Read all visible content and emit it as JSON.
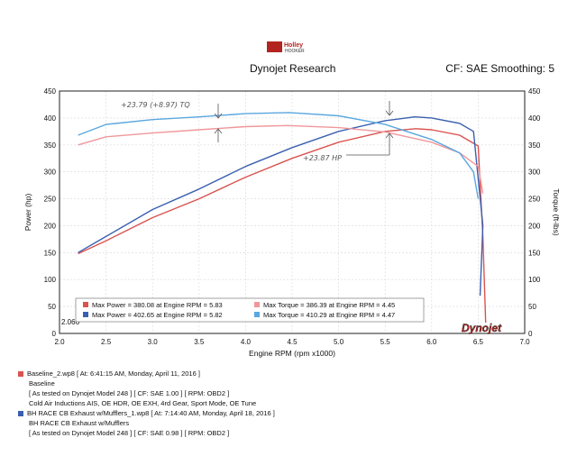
{
  "header": {
    "logo_text": "Holley",
    "logo_sub": "HOOKER",
    "title": "Dynojet Research",
    "cf_smoothing": "CF: SAE Smoothing: 5"
  },
  "chart_data": {
    "type": "line",
    "xlabel": "Engine RPM (rpm x1000)",
    "ylabel_left": "Power (hp)",
    "ylabel_right": "Torque (ft-lbs)",
    "xlim": [
      2.0,
      7.0
    ],
    "ylim": [
      0,
      450
    ],
    "x_ticks": [
      "2.0",
      "2.5",
      "3.0",
      "3.5",
      "4.0",
      "4.5",
      "5.0",
      "5.5",
      "6.0",
      "6.5",
      "7.0"
    ],
    "y_ticks": [
      "0",
      "50",
      "100",
      "150",
      "200",
      "250",
      "300",
      "350",
      "400",
      "450"
    ],
    "min_x_label": "2.066",
    "grid": true,
    "series": [
      {
        "name": "Baseline_2.wp8 Power",
        "color": "#d9534f",
        "x": [
          2.2,
          2.5,
          3.0,
          3.5,
          4.0,
          4.5,
          5.0,
          5.5,
          5.83,
          6.0,
          6.3,
          6.5,
          6.55,
          6.58
        ],
        "y": [
          148,
          172,
          215,
          250,
          290,
          325,
          355,
          375,
          380,
          378,
          368,
          348,
          180,
          20
        ]
      },
      {
        "name": "BH RACE CB Exhaust w/Mufflers_1.wp8 Power",
        "color": "#3a5fb0",
        "x": [
          2.2,
          2.5,
          3.0,
          3.5,
          4.0,
          4.5,
          5.0,
          5.5,
          5.82,
          6.0,
          6.3,
          6.45,
          6.55,
          6.52
        ],
        "y": [
          150,
          180,
          230,
          268,
          310,
          345,
          375,
          395,
          402,
          400,
          390,
          375,
          200,
          70
        ]
      },
      {
        "name": "Baseline_2.wp8 Torque",
        "color": "#f0979b",
        "x": [
          2.2,
          2.5,
          3.0,
          3.5,
          4.0,
          4.45,
          5.0,
          5.5,
          6.0,
          6.3,
          6.5,
          6.55
        ],
        "y": [
          350,
          365,
          372,
          378,
          384,
          386,
          382,
          374,
          355,
          335,
          310,
          260
        ]
      },
      {
        "name": "BH RACE CB Exhaust w/Mufflers_1.wp8 Torque",
        "color": "#5aa7df",
        "x": [
          2.2,
          2.5,
          3.0,
          3.5,
          4.0,
          4.47,
          5.0,
          5.5,
          6.0,
          6.3,
          6.45,
          6.5
        ],
        "y": [
          368,
          388,
          397,
          402,
          408,
          410,
          404,
          388,
          360,
          335,
          300,
          250
        ]
      }
    ],
    "legend": {
      "rows": [
        {
          "color": "#d9534f",
          "text": "Max Power = 380.08 at Engine RPM = 5.83"
        },
        {
          "color": "#f0979b",
          "text": "Max Torque = 386.39 at Engine RPM = 4.45"
        },
        {
          "color": "#3a5fb0",
          "text": "Max Power = 402.65 at Engine RPM = 5.82"
        },
        {
          "color": "#5aa7df",
          "text": "Max Torque = 410.29 at Engine RPM = 4.47"
        }
      ]
    },
    "annotations": {
      "tq_note": "+23.79 (+8.97) TQ",
      "hp_note": "+23.87 HP"
    }
  },
  "watermark": "Dynojet",
  "runs": [
    {
      "color": "#d9534f",
      "title": "Baseline_2.wp8 [ At: 6:41:15 AM, Monday, April 11, 2016 ]",
      "desc": "Baseline",
      "tested": "[ As tested on Dynojet Model 248 ]  [ CF: SAE 1.00 ]  [ RPM: OBD2 ]",
      "mods": "Cold Air Inductions AIS, OE HDR, OE EXH, 4rd Gear, Sport Mode, OE Tune"
    },
    {
      "color": "#3a5fb0",
      "title": "BH RACE CB Exhaust w/Mufflers_1.wp8 [ At: 7:14:40 AM, Monday, April 18, 2016 ]",
      "desc": "BH RACE CB Exhaust w/Mufflers",
      "tested": "[ As tested on Dynojet Model 248 ]  [ CF: SAE 0.98 ]  [ RPM: OBD2 ]",
      "mods": ""
    }
  ]
}
